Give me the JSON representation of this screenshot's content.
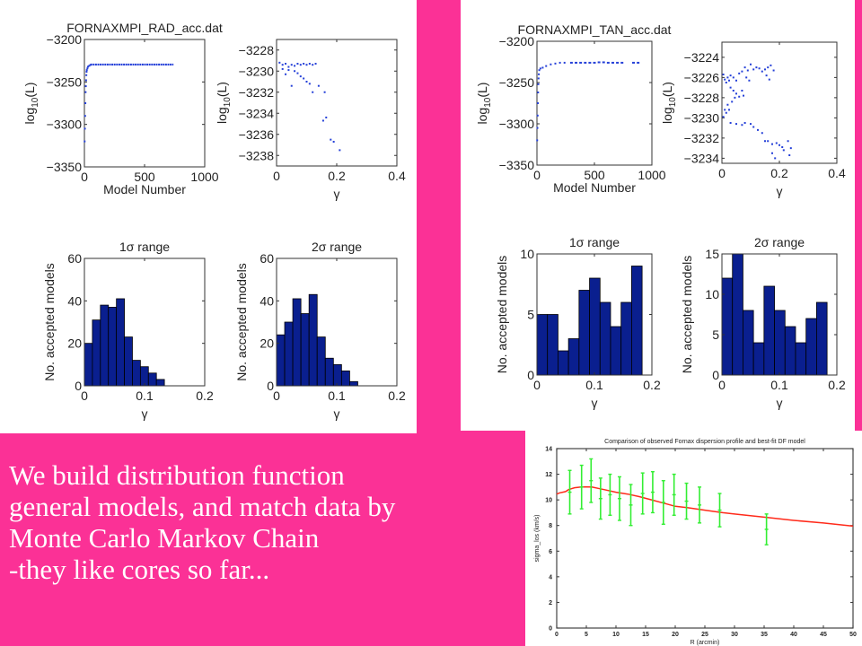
{
  "caption": {
    "lines": [
      "We build distribution function",
      "general models, and match data by",
      "Monte Carlo Markov Chain",
      "-they like cores so far..."
    ]
  },
  "colors": {
    "background": "#fb3196",
    "panel": "#ffffff",
    "histogram_bar": "#0a1f8f",
    "scatter_point": "#2540d8",
    "model_line": "#ff2a1a",
    "data_errorbar": "#33ee33"
  },
  "chart_data": [
    {
      "id": "rad_trace",
      "type": "scatter",
      "title": "FORNAXMPI_RAD_acc.dat",
      "xlabel": "Model Number",
      "ylabel": "log10(L)",
      "ylabel_base": "log",
      "ylabel_sub": "10",
      "ylabel_tail": "(L)",
      "xlim": [
        0,
        1000
      ],
      "ylim": [
        -3350,
        -3200
      ],
      "xticks": [
        "0",
        "500",
        "1000"
      ],
      "yticks": [
        "-3200",
        "-3250",
        "-3300",
        "-3350"
      ],
      "xtick_values": [
        0,
        500,
        1000
      ],
      "ytick_values": [
        -3200,
        -3250,
        -3300,
        -3350
      ],
      "burnin": [
        [
          2,
          -3320
        ],
        [
          4,
          -3305
        ],
        [
          6,
          -3290
        ],
        [
          8,
          -3275
        ],
        [
          10,
          -3262
        ],
        [
          12,
          -3255
        ],
        [
          14,
          -3248
        ],
        [
          16,
          -3242
        ],
        [
          18,
          -3238
        ],
        [
          20,
          -3236
        ],
        [
          25,
          -3234
        ],
        [
          30,
          -3232
        ],
        [
          40,
          -3231
        ],
        [
          50,
          -3230
        ]
      ],
      "plateau": {
        "x_start": 50,
        "x_end": 740,
        "y": -3229.5
      }
    },
    {
      "id": "rad_gamma",
      "type": "scatter",
      "title": "",
      "xlabel": "γ",
      "ylabel": "log10(L)",
      "ylabel_base": "log",
      "ylabel_sub": "10",
      "ylabel_tail": "(L)",
      "xlim": [
        0,
        0.4
      ],
      "ylim": [
        -3239,
        -3227
      ],
      "xticks": [
        "0",
        "0.2",
        "0.4"
      ],
      "yticks": [
        "-3228",
        "-3230",
        "-3232",
        "-3234",
        "-3236",
        "-3238"
      ],
      "xtick_values": [
        0,
        0.2,
        0.4
      ],
      "ytick_values": [
        -3228,
        -3230,
        -3232,
        -3234,
        -3236,
        -3238
      ],
      "points": [
        [
          0.01,
          -3229.2
        ],
        [
          0.02,
          -3229.4
        ],
        [
          0.03,
          -3229.3
        ],
        [
          0.04,
          -3229.6
        ],
        [
          0.05,
          -3229.4
        ],
        [
          0.06,
          -3229.5
        ],
        [
          0.07,
          -3229.3
        ],
        [
          0.08,
          -3229.4
        ],
        [
          0.09,
          -3229.3
        ],
        [
          0.1,
          -3229.4
        ],
        [
          0.11,
          -3229.3
        ],
        [
          0.12,
          -3229.4
        ],
        [
          0.13,
          -3229.3
        ],
        [
          0.02,
          -3229.8
        ],
        [
          0.04,
          -3229.9
        ],
        [
          0.06,
          -3230.0
        ],
        [
          0.03,
          -3230.3
        ],
        [
          0.07,
          -3230.2
        ],
        [
          0.08,
          -3230.5
        ],
        [
          0.09,
          -3230.7
        ],
        [
          0.1,
          -3231.0
        ],
        [
          0.11,
          -3231.2
        ],
        [
          0.05,
          -3231.4
        ],
        [
          0.14,
          -3231.4
        ],
        [
          0.12,
          -3232.0
        ],
        [
          0.16,
          -3232.0
        ],
        [
          0.155,
          -3234.7
        ],
        [
          0.165,
          -3234.4
        ],
        [
          0.18,
          -3236.5
        ],
        [
          0.19,
          -3236.7
        ],
        [
          0.21,
          -3237.5
        ]
      ]
    },
    {
      "id": "rad_hist_1sigma",
      "type": "bar",
      "title": "1σ range",
      "xlabel": "γ",
      "ylabel": "No. accepted models",
      "xlim": [
        0,
        0.2
      ],
      "ylim": [
        0,
        60
      ],
      "xticks": [
        "0",
        "0.1",
        "0.2"
      ],
      "yticks": [
        "0",
        "20",
        "40",
        "60"
      ],
      "xtick_values": [
        0,
        0.1,
        0.2
      ],
      "ytick_values": [
        0,
        20,
        40,
        60
      ],
      "bin_width": 0.0133,
      "values": [
        20,
        31,
        38,
        37,
        41,
        23,
        12,
        9,
        6,
        3
      ]
    },
    {
      "id": "rad_hist_2sigma",
      "type": "bar",
      "title": "2σ range",
      "xlabel": "γ",
      "ylabel": "No. accepted models",
      "xlim": [
        0,
        0.2
      ],
      "ylim": [
        0,
        60
      ],
      "xticks": [
        "0",
        "0.1",
        "0.2"
      ],
      "yticks": [
        "0",
        "20",
        "40",
        "60"
      ],
      "xtick_values": [
        0,
        0.1,
        0.2
      ],
      "ytick_values": [
        0,
        20,
        40,
        60
      ],
      "bin_width": 0.0135,
      "values": [
        24,
        30,
        41,
        34,
        43,
        23,
        13,
        10,
        7,
        2
      ]
    },
    {
      "id": "tan_trace",
      "type": "scatter",
      "title": "FORNAXMPI_TAN_acc.dat",
      "xlabel": "Model Number",
      "ylabel": "log10(L)",
      "ylabel_base": "log",
      "ylabel_sub": "10",
      "ylabel_tail": "(L)",
      "xlim": [
        0,
        1000
      ],
      "ylim": [
        -3350,
        -3200
      ],
      "xticks": [
        "0",
        "500",
        "1000"
      ],
      "yticks": [
        "-3200",
        "-3250",
        "-3300",
        "-3350"
      ],
      "xtick_values": [
        0,
        500,
        1000
      ],
      "ytick_values": [
        -3200,
        -3250,
        -3300,
        -3350
      ],
      "burnin": [
        [
          2,
          -3320
        ],
        [
          4,
          -3305
        ],
        [
          6,
          -3290
        ],
        [
          8,
          -3275
        ],
        [
          10,
          -3262
        ],
        [
          12,
          -3252
        ],
        [
          14,
          -3245
        ],
        [
          16,
          -3240
        ],
        [
          20,
          -3235
        ],
        [
          30,
          -3233
        ],
        [
          50,
          -3232
        ],
        [
          80,
          -3230
        ],
        [
          120,
          -3228
        ],
        [
          160,
          -3227
        ],
        [
          200,
          -3226
        ],
        [
          240,
          -3226
        ]
      ],
      "plateau_points": [
        [
          300,
          -3226
        ],
        [
          340,
          -3226
        ],
        [
          380,
          -3226
        ],
        [
          420,
          -3226
        ],
        [
          460,
          -3226
        ],
        [
          500,
          -3226
        ],
        [
          540,
          -3225.5
        ],
        [
          580,
          -3225.5
        ],
        [
          620,
          -3226
        ],
        [
          660,
          -3226
        ],
        [
          700,
          -3226
        ],
        [
          740,
          -3226
        ],
        [
          840,
          -3226
        ],
        [
          880,
          -3226
        ]
      ]
    },
    {
      "id": "tan_gamma",
      "type": "scatter",
      "title": "",
      "xlabel": "γ",
      "ylabel": "log10(L)",
      "ylabel_base": "log",
      "ylabel_sub": "10",
      "ylabel_tail": "(L)",
      "xlim": [
        0,
        0.4
      ],
      "ylim": [
        -3234.5,
        -3222.5
      ],
      "xticks": [
        "0",
        "0.2",
        "0.4"
      ],
      "yticks": [
        "-3224",
        "-3226",
        "-3228",
        "-3230",
        "-3232",
        "-3234"
      ],
      "xtick_values": [
        0,
        0.2,
        0.4
      ],
      "ytick_values": [
        -3224,
        -3226,
        -3228,
        -3230,
        -3232,
        -3234
      ],
      "points": [
        [
          0.005,
          -3225.7
        ],
        [
          0.01,
          -3226.2
        ],
        [
          0.02,
          -3226.0
        ],
        [
          0.03,
          -3225.8
        ],
        [
          0.04,
          -3226.0
        ],
        [
          0.05,
          -3226.3
        ],
        [
          0.015,
          -3226.5
        ],
        [
          0.025,
          -3226.3
        ],
        [
          0.06,
          -3225.6
        ],
        [
          0.07,
          -3225.4
        ],
        [
          0.08,
          -3225.0
        ],
        [
          0.09,
          -3225.3
        ],
        [
          0.1,
          -3224.7
        ],
        [
          0.11,
          -3225.2
        ],
        [
          0.12,
          -3225.0
        ],
        [
          0.13,
          -3225.1
        ],
        [
          0.14,
          -3225.4
        ],
        [
          0.15,
          -3225.2
        ],
        [
          0.16,
          -3225.0
        ],
        [
          0.17,
          -3224.8
        ],
        [
          0.18,
          -3225.3
        ],
        [
          0.155,
          -3225.8
        ],
        [
          0.165,
          -3226.2
        ],
        [
          0.085,
          -3226.0
        ],
        [
          0.095,
          -3226.3
        ],
        [
          0.03,
          -3227.0
        ],
        [
          0.04,
          -3227.3
        ],
        [
          0.05,
          -3227.6
        ],
        [
          0.06,
          -3227.9
        ],
        [
          0.07,
          -3227.3
        ],
        [
          0.075,
          -3227.8
        ],
        [
          0.045,
          -3228.0
        ],
        [
          0.035,
          -3228.4
        ],
        [
          0.02,
          -3228.7
        ],
        [
          0.01,
          -3229.2
        ],
        [
          0.015,
          -3229.5
        ],
        [
          0.025,
          -3229.2
        ],
        [
          0.005,
          -3229.9
        ],
        [
          0.03,
          -3230.5
        ],
        [
          0.05,
          -3230.6
        ],
        [
          0.07,
          -3230.7
        ],
        [
          0.08,
          -3230.5
        ],
        [
          0.1,
          -3230.6
        ],
        [
          0.11,
          -3230.9
        ],
        [
          0.125,
          -3231.2
        ],
        [
          0.14,
          -3231.5
        ],
        [
          0.15,
          -3232.3
        ],
        [
          0.16,
          -3232.3
        ],
        [
          0.175,
          -3232.6
        ],
        [
          0.19,
          -3232.5
        ],
        [
          0.2,
          -3232.7
        ],
        [
          0.21,
          -3232.9
        ],
        [
          0.215,
          -3233.2
        ],
        [
          0.23,
          -3232.3
        ],
        [
          0.24,
          -3233.0
        ],
        [
          0.175,
          -3233.5
        ],
        [
          0.185,
          -3234.0
        ],
        [
          0.235,
          -3233.7
        ]
      ]
    },
    {
      "id": "tan_hist_1sigma",
      "type": "bar",
      "title": "1σ range",
      "xlabel": "γ",
      "ylabel": "No. accepted models",
      "xlim": [
        0,
        0.2
      ],
      "ylim": [
        0,
        10
      ],
      "xticks": [
        "0",
        "0.1",
        "0.2"
      ],
      "yticks": [
        "0",
        "5",
        "10"
      ],
      "xtick_values": [
        0,
        0.1,
        0.2
      ],
      "ytick_values": [
        0,
        5,
        10
      ],
      "bin_width": 0.0183,
      "values": [
        5,
        5,
        2,
        3,
        7,
        8,
        6,
        4,
        6,
        9
      ]
    },
    {
      "id": "tan_hist_2sigma",
      "type": "bar",
      "title": "2σ range",
      "xlabel": "γ",
      "ylabel": "No. accepted models",
      "xlim": [
        0,
        0.2
      ],
      "ylim": [
        0,
        15
      ],
      "xticks": [
        "0",
        "0.1",
        "0.2"
      ],
      "yticks": [
        "0",
        "5",
        "10",
        "15"
      ],
      "xtick_values": [
        0,
        0.1,
        0.2
      ],
      "ytick_values": [
        0,
        5,
        10,
        15
      ],
      "bin_width": 0.0183,
      "values": [
        12,
        15,
        8,
        4,
        11,
        8,
        6,
        4,
        7,
        9
      ]
    },
    {
      "id": "dispersion_profile",
      "type": "line",
      "title": "Comparison of observed Fornax dispersion profile and best-fit DF model",
      "xlabel": "R (arcmin)",
      "ylabel": "sigma_los (km/s)",
      "xlim": [
        0,
        50
      ],
      "ylim": [
        0,
        14
      ],
      "xticks": [
        "0",
        "5",
        "10",
        "15",
        "20",
        "25",
        "30",
        "35",
        "40",
        "45",
        "50"
      ],
      "yticks": [
        "0",
        "2",
        "4",
        "6",
        "8",
        "10",
        "12",
        "14"
      ],
      "xtick_values": [
        0,
        5,
        10,
        15,
        20,
        25,
        30,
        35,
        40,
        45,
        50
      ],
      "ytick_values": [
        0,
        2,
        4,
        6,
        8,
        10,
        12,
        14
      ],
      "series": [
        {
          "name": "best-fit DF model",
          "x": [
            0,
            0.5,
            1,
            1.5,
            2,
            3,
            4,
            5,
            6,
            7,
            8,
            10,
            12,
            14,
            16,
            18,
            20,
            22,
            25,
            28,
            30,
            35,
            40,
            45,
            50
          ],
          "y": [
            10.45,
            10.55,
            10.6,
            10.65,
            10.8,
            10.95,
            11.0,
            11.02,
            11.0,
            10.9,
            10.8,
            10.6,
            10.45,
            10.25,
            10.0,
            9.75,
            9.5,
            9.4,
            9.2,
            9.0,
            8.9,
            8.65,
            8.4,
            8.2,
            7.95
          ]
        },
        {
          "name": "observed",
          "x": [
            2.2,
            4.2,
            5.8,
            7.4,
            9.0,
            10.6,
            12.5,
            14.5,
            16.2,
            18.0,
            19.8,
            21.9,
            24.1,
            27.5,
            35.4
          ],
          "y": [
            10.6,
            11.0,
            11.5,
            10.1,
            10.4,
            10.1,
            9.6,
            10.5,
            10.6,
            9.8,
            10.4,
            9.9,
            9.6,
            9.2,
            7.7
          ],
          "err_low": [
            8.9,
            9.3,
            9.8,
            8.5,
            8.8,
            8.4,
            8.0,
            8.9,
            9.0,
            8.1,
            8.8,
            8.5,
            8.2,
            7.9,
            6.5
          ],
          "err_high": [
            12.3,
            12.7,
            13.2,
            11.7,
            12.0,
            11.8,
            11.2,
            12.1,
            12.2,
            11.5,
            12.0,
            11.3,
            11.0,
            10.5,
            8.9
          ]
        }
      ]
    }
  ]
}
